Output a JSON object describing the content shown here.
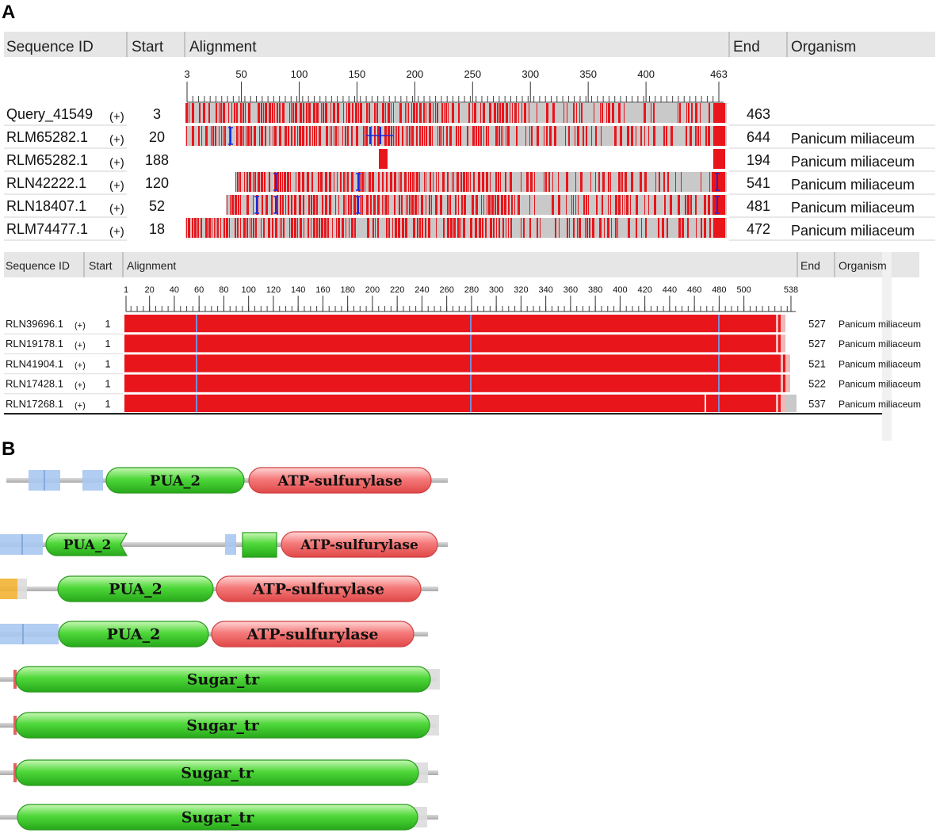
{
  "panel_a_label": "A",
  "panel_b_label": "B",
  "table1": {
    "headers": {
      "id": "Sequence ID",
      "start": "Start",
      "alignment": "Alignment",
      "end": "End",
      "organism": "Organism"
    },
    "ticks": [
      "3",
      "50",
      "100",
      "150",
      "200",
      "250",
      "300",
      "350",
      "400",
      "463"
    ],
    "rows": [
      {
        "id": "Query_41549",
        "strand": "(+)",
        "start": "3",
        "end": "463",
        "organism": ""
      },
      {
        "id": "RLM65282.1",
        "strand": "(+)",
        "start": "20",
        "end": "644",
        "organism": "Panicum miliaceum"
      },
      {
        "id": "RLM65282.1",
        "strand": "(+)",
        "start": "188",
        "end": "194",
        "organism": "Panicum miliaceum"
      },
      {
        "id": "RLN42222.1",
        "strand": "(+)",
        "start": "120",
        "end": "541",
        "organism": "Panicum miliaceum"
      },
      {
        "id": "RLN18407.1",
        "strand": "(+)",
        "start": "52",
        "end": "481",
        "organism": "Panicum miliaceum"
      },
      {
        "id": "RLM74477.1",
        "strand": "(+)",
        "start": "18",
        "end": "472",
        "organism": "Panicum miliaceum"
      }
    ]
  },
  "table2": {
    "headers": {
      "id": "Sequence ID",
      "start": "Start",
      "alignment": "Alignment",
      "end": "End",
      "organism": "Organism"
    },
    "ticks": [
      "1",
      "20",
      "40",
      "60",
      "80",
      "100",
      "120",
      "140",
      "160",
      "180",
      "200",
      "220",
      "240",
      "260",
      "280",
      "300",
      "320",
      "340",
      "360",
      "380",
      "400",
      "420",
      "440",
      "460",
      "480",
      "500",
      "538"
    ],
    "rows": [
      {
        "id": "RLN39696.1",
        "strand": "(+)",
        "start": "1",
        "end": "527",
        "organism": "Panicum miliaceum"
      },
      {
        "id": "RLN19178.1",
        "strand": "(+)",
        "start": "1",
        "end": "527",
        "organism": "Panicum miliaceum"
      },
      {
        "id": "RLN41904.1",
        "strand": "(+)",
        "start": "1",
        "end": "521",
        "organism": "Panicum miliaceum"
      },
      {
        "id": "RLN17428.1",
        "strand": "(+)",
        "start": "1",
        "end": "522",
        "organism": "Panicum miliaceum"
      },
      {
        "id": "RLN17268.1",
        "strand": "(+)",
        "start": "1",
        "end": "537",
        "organism": "Panicum miliaceum"
      }
    ]
  },
  "domains": {
    "pua": "PUA_2",
    "atp": "ATP-sulfurylase",
    "sugar": "Sugar_tr"
  },
  "colors": {
    "header_bg": "#e4e4e4",
    "match_red": "#e8151b",
    "gap_gray": "#c9c9c9",
    "insert_blue": "#1f2ad6",
    "domain_green": "#3fcf2f",
    "domain_red": "#f26a6a",
    "region_blue": "#a8c8f0",
    "region_orange": "#f2b233",
    "backbone": "#b9b9b9"
  }
}
